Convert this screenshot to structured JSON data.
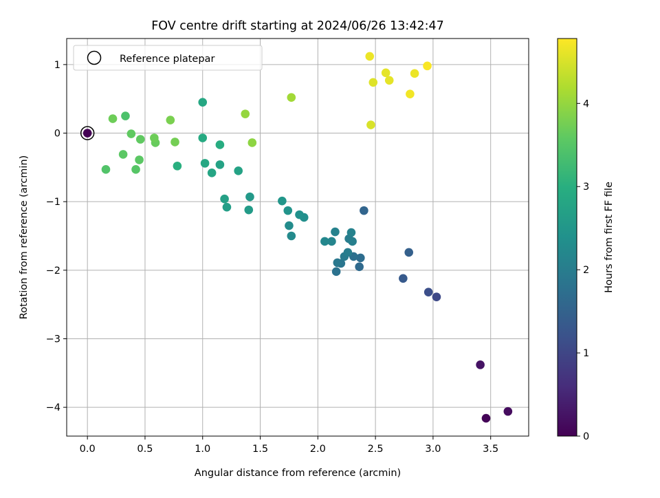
{
  "chart_data": {
    "type": "scatter",
    "title": "FOV centre drift starting at 2024/06/26 13:42:47",
    "xlabel": "Angular distance from reference (arcmin)",
    "ylabel": "Rotation from reference (arcmin)",
    "xlim": [
      -0.18,
      3.83
    ],
    "ylim": [
      -4.42,
      1.38
    ],
    "xticks": [
      0.0,
      0.5,
      1.0,
      1.5,
      2.0,
      2.5,
      3.0,
      3.5
    ],
    "xtick_labels": [
      "0.0",
      "0.5",
      "1.0",
      "1.5",
      "2.0",
      "2.5",
      "3.0",
      "3.5"
    ],
    "yticks": [
      -4,
      -3,
      -2,
      -1,
      0,
      1
    ],
    "ytick_labels": [
      "−4",
      "−3",
      "−2",
      "−1",
      "0",
      "1"
    ],
    "grid": true,
    "legend": {
      "placement": "top-left",
      "entries": [
        "Reference platepar"
      ]
    },
    "reference_point": {
      "x": 0.0,
      "y": 0.0
    },
    "colorbar": {
      "label": "Hours from first FF file",
      "colormap": "viridis",
      "range": [
        0,
        4.78
      ],
      "ticks": [
        0,
        1,
        2,
        3,
        4
      ],
      "tick_labels": [
        "0",
        "1",
        "2",
        "3",
        "4"
      ]
    },
    "points": [
      {
        "x": 3.46,
        "y": -4.16,
        "c": 0.05
      },
      {
        "x": 3.65,
        "y": -4.06,
        "c": 0.15
      },
      {
        "x": 3.41,
        "y": -3.38,
        "c": 0.25
      },
      {
        "x": 3.03,
        "y": -2.39,
        "c": 1.05
      },
      {
        "x": 2.96,
        "y": -2.32,
        "c": 1.15
      },
      {
        "x": 2.74,
        "y": -2.12,
        "c": 1.35
      },
      {
        "x": 2.79,
        "y": -1.74,
        "c": 1.45
      },
      {
        "x": 2.4,
        "y": -1.13,
        "c": 1.55
      },
      {
        "x": 2.36,
        "y": -1.95,
        "c": 1.65
      },
      {
        "x": 2.37,
        "y": -1.82,
        "c": 1.7
      },
      {
        "x": 2.31,
        "y": -1.8,
        "c": 1.75
      },
      {
        "x": 2.16,
        "y": -2.02,
        "c": 1.8
      },
      {
        "x": 2.2,
        "y": -1.9,
        "c": 1.85
      },
      {
        "x": 2.17,
        "y": -1.89,
        "c": 1.9
      },
      {
        "x": 2.23,
        "y": -1.8,
        "c": 1.95
      },
      {
        "x": 2.26,
        "y": -1.74,
        "c": 2.0
      },
      {
        "x": 2.27,
        "y": -1.54,
        "c": 2.0
      },
      {
        "x": 2.3,
        "y": -1.58,
        "c": 2.05
      },
      {
        "x": 2.29,
        "y": -1.45,
        "c": 2.1
      },
      {
        "x": 2.15,
        "y": -1.44,
        "c": 2.1
      },
      {
        "x": 2.12,
        "y": -1.58,
        "c": 2.15
      },
      {
        "x": 2.06,
        "y": -1.58,
        "c": 2.2
      },
      {
        "x": 1.77,
        "y": -1.5,
        "c": 2.25
      },
      {
        "x": 1.75,
        "y": -1.35,
        "c": 2.3
      },
      {
        "x": 1.88,
        "y": -1.23,
        "c": 2.35
      },
      {
        "x": 1.84,
        "y": -1.19,
        "c": 2.4
      },
      {
        "x": 1.74,
        "y": -1.13,
        "c": 2.45
      },
      {
        "x": 1.69,
        "y": -0.99,
        "c": 2.5
      },
      {
        "x": 1.41,
        "y": -0.93,
        "c": 2.55
      },
      {
        "x": 1.4,
        "y": -1.12,
        "c": 2.6
      },
      {
        "x": 1.21,
        "y": -1.08,
        "c": 2.65
      },
      {
        "x": 1.19,
        "y": -0.96,
        "c": 2.7
      },
      {
        "x": 1.31,
        "y": -0.55,
        "c": 2.75
      },
      {
        "x": 1.15,
        "y": -0.46,
        "c": 2.75
      },
      {
        "x": 1.08,
        "y": -0.58,
        "c": 2.8
      },
      {
        "x": 1.02,
        "y": -0.44,
        "c": 2.85
      },
      {
        "x": 1.0,
        "y": 0.45,
        "c": 2.85
      },
      {
        "x": 1.0,
        "y": -0.07,
        "c": 2.9
      },
      {
        "x": 1.15,
        "y": -0.17,
        "c": 2.95
      },
      {
        "x": 0.78,
        "y": -0.48,
        "c": 3.0
      },
      {
        "x": 0.33,
        "y": 0.25,
        "c": 3.4
      },
      {
        "x": 0.16,
        "y": -0.53,
        "c": 3.45
      },
      {
        "x": 0.42,
        "y": -0.53,
        "c": 3.5
      },
      {
        "x": 0.45,
        "y": -0.39,
        "c": 3.55
      },
      {
        "x": 0.31,
        "y": -0.31,
        "c": 3.55
      },
      {
        "x": 0.46,
        "y": -0.09,
        "c": 3.6
      },
      {
        "x": 0.38,
        "y": -0.01,
        "c": 3.6
      },
      {
        "x": 0.59,
        "y": -0.14,
        "c": 3.65
      },
      {
        "x": 0.58,
        "y": -0.07,
        "c": 3.7
      },
      {
        "x": 0.22,
        "y": 0.21,
        "c": 3.7
      },
      {
        "x": 0.76,
        "y": -0.13,
        "c": 3.75
      },
      {
        "x": 0.72,
        "y": 0.19,
        "c": 3.8
      },
      {
        "x": 1.43,
        "y": -0.14,
        "c": 3.95
      },
      {
        "x": 1.37,
        "y": 0.28,
        "c": 4.0
      },
      {
        "x": 1.77,
        "y": 0.52,
        "c": 4.1
      },
      {
        "x": 2.46,
        "y": 0.12,
        "c": 4.5
      },
      {
        "x": 2.48,
        "y": 0.74,
        "c": 4.55
      },
      {
        "x": 2.62,
        "y": 0.77,
        "c": 4.6
      },
      {
        "x": 2.59,
        "y": 0.88,
        "c": 4.6
      },
      {
        "x": 2.45,
        "y": 1.12,
        "c": 4.65
      },
      {
        "x": 2.84,
        "y": 0.87,
        "c": 4.65
      },
      {
        "x": 2.8,
        "y": 0.57,
        "c": 4.7
      },
      {
        "x": 2.95,
        "y": 0.98,
        "c": 4.75
      }
    ]
  }
}
